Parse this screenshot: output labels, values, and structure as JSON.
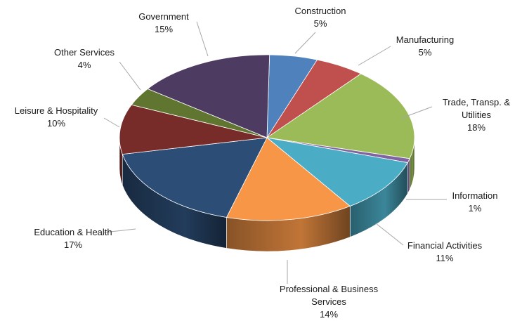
{
  "chart_data": {
    "type": "pie",
    "style": "3d-exploded-depth",
    "title": "",
    "legend": "none",
    "slices": [
      {
        "label": "Construction",
        "label_lines": [
          "Construction"
        ],
        "percent_label": "5%",
        "value": 5.2,
        "color": "#4f81bd"
      },
      {
        "label": "Manufacturing",
        "label_lines": [
          "Manufacturing"
        ],
        "percent_label": "5%",
        "value": 5.4,
        "color": "#c0504d"
      },
      {
        "label": "Trade, Transp. & Utilities",
        "label_lines": [
          "Trade, Transp. &",
          "Utilities"
        ],
        "percent_label": "18%",
        "value": 17.9,
        "color": "#9bbb59"
      },
      {
        "label": "Information",
        "label_lines": [
          "Information"
        ],
        "percent_label": "1%",
        "value": 0.8,
        "color": "#8064a2"
      },
      {
        "label": "Financial Activities",
        "label_lines": [
          "Financial Activities"
        ],
        "percent_label": "11%",
        "value": 10.5,
        "color": "#4bacc6"
      },
      {
        "label": "Professional & Business Services",
        "label_lines": [
          "Professional & Business",
          "Services"
        ],
        "percent_label": "14%",
        "value": 13.8,
        "color": "#f79646"
      },
      {
        "label": "Education & Health",
        "label_lines": [
          "Education & Health"
        ],
        "percent_label": "17%",
        "value": 17.2,
        "color": "#2c4d75"
      },
      {
        "label": "Leisure & Hospitality",
        "label_lines": [
          "Leisure & Hospitality"
        ],
        "percent_label": "10%",
        "value": 9.6,
        "color": "#772c2a"
      },
      {
        "label": "Other Services",
        "label_lines": [
          "Other Services"
        ],
        "percent_label": "4%",
        "value": 3.5,
        "color": "#5f7530"
      },
      {
        "label": "Government",
        "label_lines": [
          "Government"
        ],
        "percent_label": "15%",
        "value": 15.1,
        "color": "#4d3b62"
      }
    ]
  }
}
